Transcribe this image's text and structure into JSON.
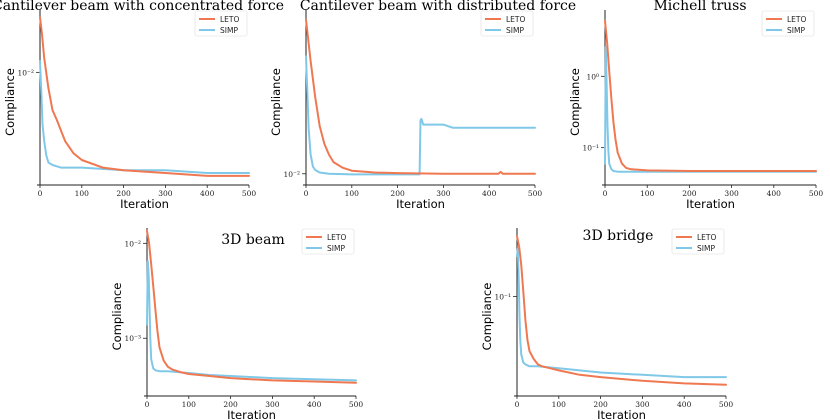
{
  "chart_data": [
    {
      "type": "line",
      "title": "Cantilever beam with concentrated force",
      "xlabel": "Iteration",
      "ylabel": "Compliance",
      "yscale": "log",
      "xlim": [
        0,
        500
      ],
      "ylim": [
        0.0025,
        0.022
      ],
      "xticks": [
        0,
        100,
        200,
        300,
        400,
        500
      ],
      "yticks": [
        {
          "value": 0.01,
          "label": "10⁻²"
        }
      ],
      "legend": "top-right",
      "series": [
        {
          "name": "LETO",
          "color": "#F07850",
          "x": [
            0,
            5,
            10,
            20,
            30,
            40,
            50,
            60,
            80,
            100,
            150,
            200,
            300,
            400,
            500
          ],
          "y": [
            0.02,
            0.016,
            0.012,
            0.0082,
            0.0062,
            0.0055,
            0.0048,
            0.0042,
            0.0036,
            0.0033,
            0.003,
            0.0029,
            0.0028,
            0.0027,
            0.0027
          ]
        },
        {
          "name": "SIMP",
          "color": "#80C8E8",
          "x": [
            0,
            3,
            6,
            10,
            15,
            20,
            30,
            50,
            100,
            200,
            300,
            400,
            500
          ],
          "y": [
            0.0115,
            0.0078,
            0.0052,
            0.0042,
            0.0035,
            0.0032,
            0.0031,
            0.003,
            0.003,
            0.0029,
            0.0029,
            0.0028,
            0.0028
          ]
        }
      ]
    },
    {
      "type": "line",
      "title": "Cantilever beam with distributed force",
      "xlabel": "Iteration",
      "ylabel": "Compliance",
      "yscale": "log",
      "xlim": [
        0,
        500
      ],
      "ylim": [
        0.0088,
        0.128
      ],
      "xticks": [
        0,
        100,
        200,
        300,
        400,
        500
      ],
      "yticks": [
        {
          "value": 0.01,
          "label": "10⁻²"
        }
      ],
      "legend": "top-right",
      "series": [
        {
          "name": "LETO",
          "color": "#F07850",
          "x": [
            0,
            5,
            10,
            20,
            30,
            40,
            50,
            60,
            80,
            100,
            150,
            200,
            300,
            420,
            425,
            430,
            500
          ],
          "y": [
            0.11,
            0.08,
            0.058,
            0.033,
            0.021,
            0.016,
            0.0135,
            0.012,
            0.011,
            0.0105,
            0.0102,
            0.0101,
            0.01,
            0.01,
            0.0103,
            0.01,
            0.01
          ]
        },
        {
          "name": "SIMP",
          "color": "#80C8E8",
          "x": [
            0,
            3,
            6,
            10,
            15,
            20,
            30,
            50,
            100,
            200,
            248,
            250,
            252,
            256,
            260,
            300,
            320,
            500
          ],
          "y": [
            0.062,
            0.035,
            0.02,
            0.0135,
            0.0112,
            0.0106,
            0.0102,
            0.01,
            0.0099,
            0.0099,
            0.0099,
            0.023,
            0.0235,
            0.0215,
            0.0215,
            0.0215,
            0.0205,
            0.0205
          ]
        }
      ]
    },
    {
      "type": "line",
      "title": "Michell truss",
      "xlabel": "Iteration",
      "ylabel": "Compliance",
      "yscale": "log",
      "xlim": [
        0,
        500
      ],
      "ylim": [
        0.033,
        8.5
      ],
      "xticks": [
        0,
        100,
        200,
        300,
        400,
        500
      ],
      "yticks": [
        {
          "value": 1,
          "label": "10⁰"
        },
        {
          "value": 0.1,
          "label": "10⁻¹"
        }
      ],
      "legend": "top-right",
      "series": [
        {
          "name": "LETO",
          "color": "#F07850",
          "x": [
            0,
            5,
            10,
            15,
            20,
            25,
            30,
            40,
            50,
            60,
            80,
            100,
            200,
            300,
            400,
            500
          ],
          "y": [
            6.0,
            3.0,
            1.2,
            0.5,
            0.23,
            0.13,
            0.085,
            0.06,
            0.052,
            0.05,
            0.049,
            0.048,
            0.047,
            0.047,
            0.047,
            0.047
          ]
        },
        {
          "name": "SIMP",
          "color": "#80C8E8",
          "x": [
            0,
            2,
            4,
            6,
            8,
            10,
            15,
            20,
            30,
            100,
            200,
            300,
            400,
            500
          ],
          "y": [
            0.06,
            2.6,
            0.7,
            0.2,
            0.09,
            0.06,
            0.05,
            0.047,
            0.046,
            0.046,
            0.046,
            0.046,
            0.046,
            0.046
          ]
        }
      ]
    },
    {
      "type": "line",
      "title": "3D beam",
      "xlabel": "Iteration",
      "ylabel": "Compliance",
      "yscale": "log",
      "xlim": [
        0,
        500
      ],
      "ylim": [
        0.000265,
        0.0145
      ],
      "xticks": [
        0,
        100,
        200,
        300,
        400,
        500
      ],
      "yticks": [
        {
          "value": 0.01,
          "label": "10⁻²"
        },
        {
          "value": 0.001,
          "label": "10⁻³"
        }
      ],
      "legend": "top-right",
      "series": [
        {
          "name": "LETO",
          "color": "#F07850",
          "x": [
            0,
            5,
            10,
            15,
            20,
            25,
            30,
            40,
            50,
            60,
            80,
            100,
            150,
            200,
            300,
            400,
            500
          ],
          "y": [
            0.0135,
            0.01,
            0.006,
            0.0035,
            0.002,
            0.0012,
            0.0008,
            0.00058,
            0.0005,
            0.00047,
            0.00044,
            0.00042,
            0.0004,
            0.00038,
            0.00036,
            0.00035,
            0.00034
          ]
        },
        {
          "name": "SIMP",
          "color": "#80C8E8",
          "x": [
            0,
            2,
            4,
            6,
            8,
            10,
            15,
            20,
            30,
            50,
            100,
            150,
            200,
            300,
            400,
            500
          ],
          "y": [
            0.0014,
            0.0065,
            0.0045,
            0.0022,
            0.001,
            0.0006,
            0.00048,
            0.00046,
            0.00045,
            0.00045,
            0.00043,
            0.00041,
            0.0004,
            0.00038,
            0.00037,
            0.00036
          ]
        }
      ]
    },
    {
      "type": "line",
      "title": "3D bridge",
      "xlabel": "Iteration",
      "ylabel": "Compliance",
      "yscale": "log",
      "xlim": [
        0,
        500
      ],
      "ylim": [
        0.0172,
        0.35
      ],
      "xticks": [
        0,
        100,
        200,
        300,
        400,
        500
      ],
      "yticks": [
        {
          "value": 0.1,
          "label": "10⁻¹"
        }
      ],
      "legend": "top-right",
      "series": [
        {
          "name": "LETO",
          "color": "#F07850",
          "x": [
            0,
            5,
            10,
            15,
            20,
            25,
            30,
            40,
            50,
            60,
            80,
            100,
            150,
            200,
            300,
            400,
            500
          ],
          "y": [
            0.3,
            0.25,
            0.18,
            0.11,
            0.065,
            0.045,
            0.037,
            0.032,
            0.029,
            0.028,
            0.027,
            0.026,
            0.024,
            0.023,
            0.0215,
            0.0205,
            0.02
          ]
        },
        {
          "name": "SIMP",
          "color": "#80C8E8",
          "x": [
            0,
            2,
            4,
            6,
            8,
            10,
            15,
            20,
            30,
            50,
            100,
            150,
            200,
            300,
            400,
            500
          ],
          "y": [
            0.21,
            0.24,
            0.14,
            0.07,
            0.045,
            0.035,
            0.03,
            0.029,
            0.028,
            0.028,
            0.027,
            0.026,
            0.025,
            0.024,
            0.023,
            0.023
          ]
        }
      ]
    }
  ]
}
